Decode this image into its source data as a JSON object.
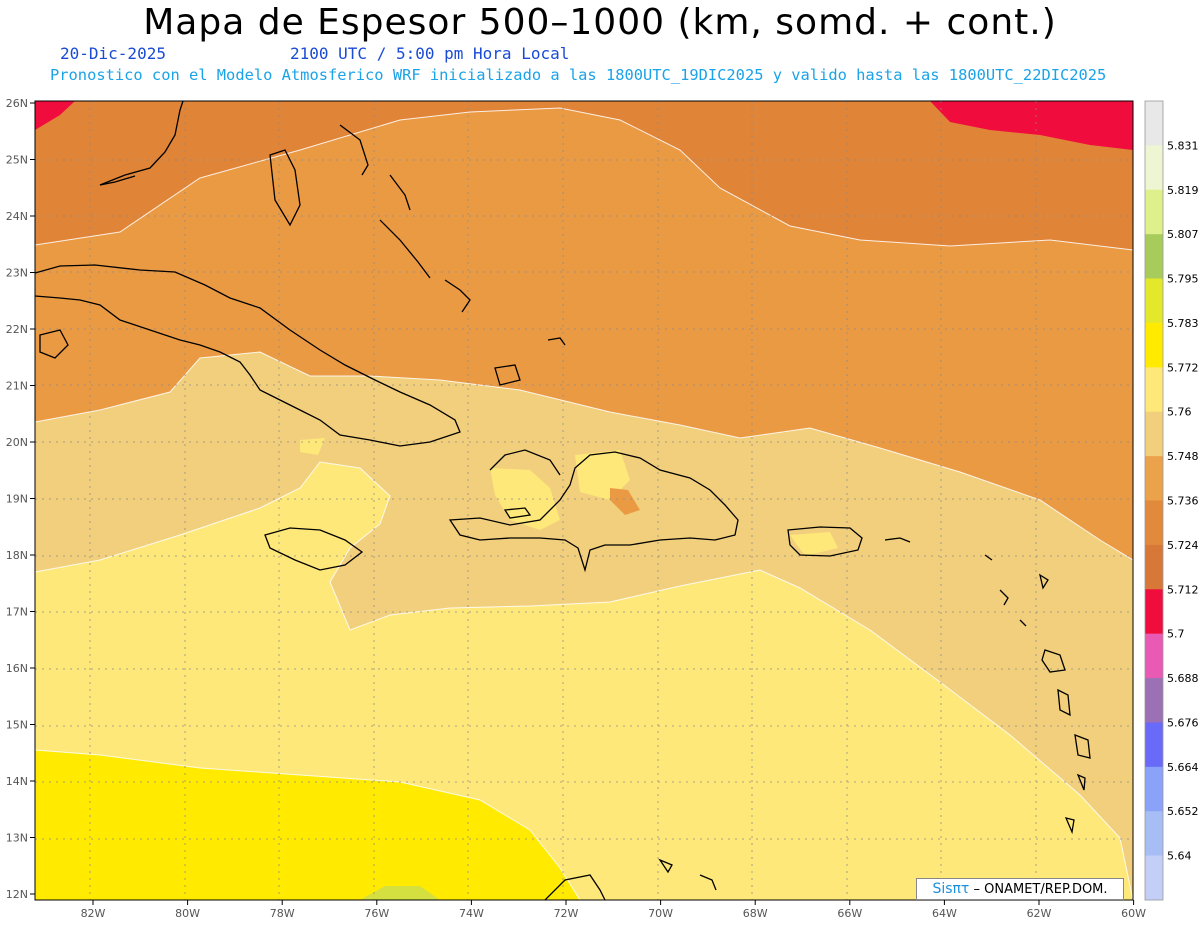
{
  "header": {
    "title": "Mapa de Espesor 500–1000 (km, somd. + cont.)",
    "date": "20-Dic-2025",
    "time": "2100 UTC / 5:00 pm Hora Local",
    "model_line": "Pronostico con el Modelo Atmosferico WRF inicializado a las 1800UTC_19DIC2025 y valido hasta las  1800UTC_22DIC2025"
  },
  "axes": {
    "lat_labels": [
      "26N",
      "25N",
      "24N",
      "23N",
      "22N",
      "21N",
      "20N",
      "19N",
      "18N",
      "17N",
      "16N",
      "15N",
      "14N",
      "13N",
      "12N"
    ],
    "lon_labels": [
      "82W",
      "80W",
      "78W",
      "76W",
      "74W",
      "72W",
      "70W",
      "68W",
      "66W",
      "64W",
      "62W",
      "60W"
    ]
  },
  "colorbar": {
    "labels": [
      "5.831",
      "5.819",
      "5.807",
      "5.795",
      "5.783",
      "5.772",
      "5.76",
      "5.748",
      "5.736",
      "5.724",
      "5.712",
      "5.7",
      "5.688",
      "5.676",
      "5.664",
      "5.652",
      "5.64"
    ],
    "colors": [
      "#e8e8e8",
      "#eef5d2",
      "#ddf08c",
      "#a8cc5c",
      "#e4e82a",
      "#ffea00",
      "#ffe87a",
      "#f2cf7c",
      "#eba24a",
      "#e28a3c",
      "#d87838",
      "#f00d3e",
      "#e85ab4",
      "#9c70b4",
      "#6a6af8",
      "#8aa2f8",
      "#a6bdf6",
      "#c4cff8"
    ]
  },
  "credit": {
    "brand": "Sisπτ",
    "text": "– ONAMET/REP.DOM."
  }
}
